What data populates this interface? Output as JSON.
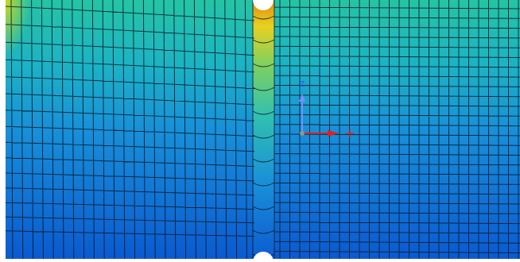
{
  "viewport": {
    "axis_label": "Z"
  }
}
